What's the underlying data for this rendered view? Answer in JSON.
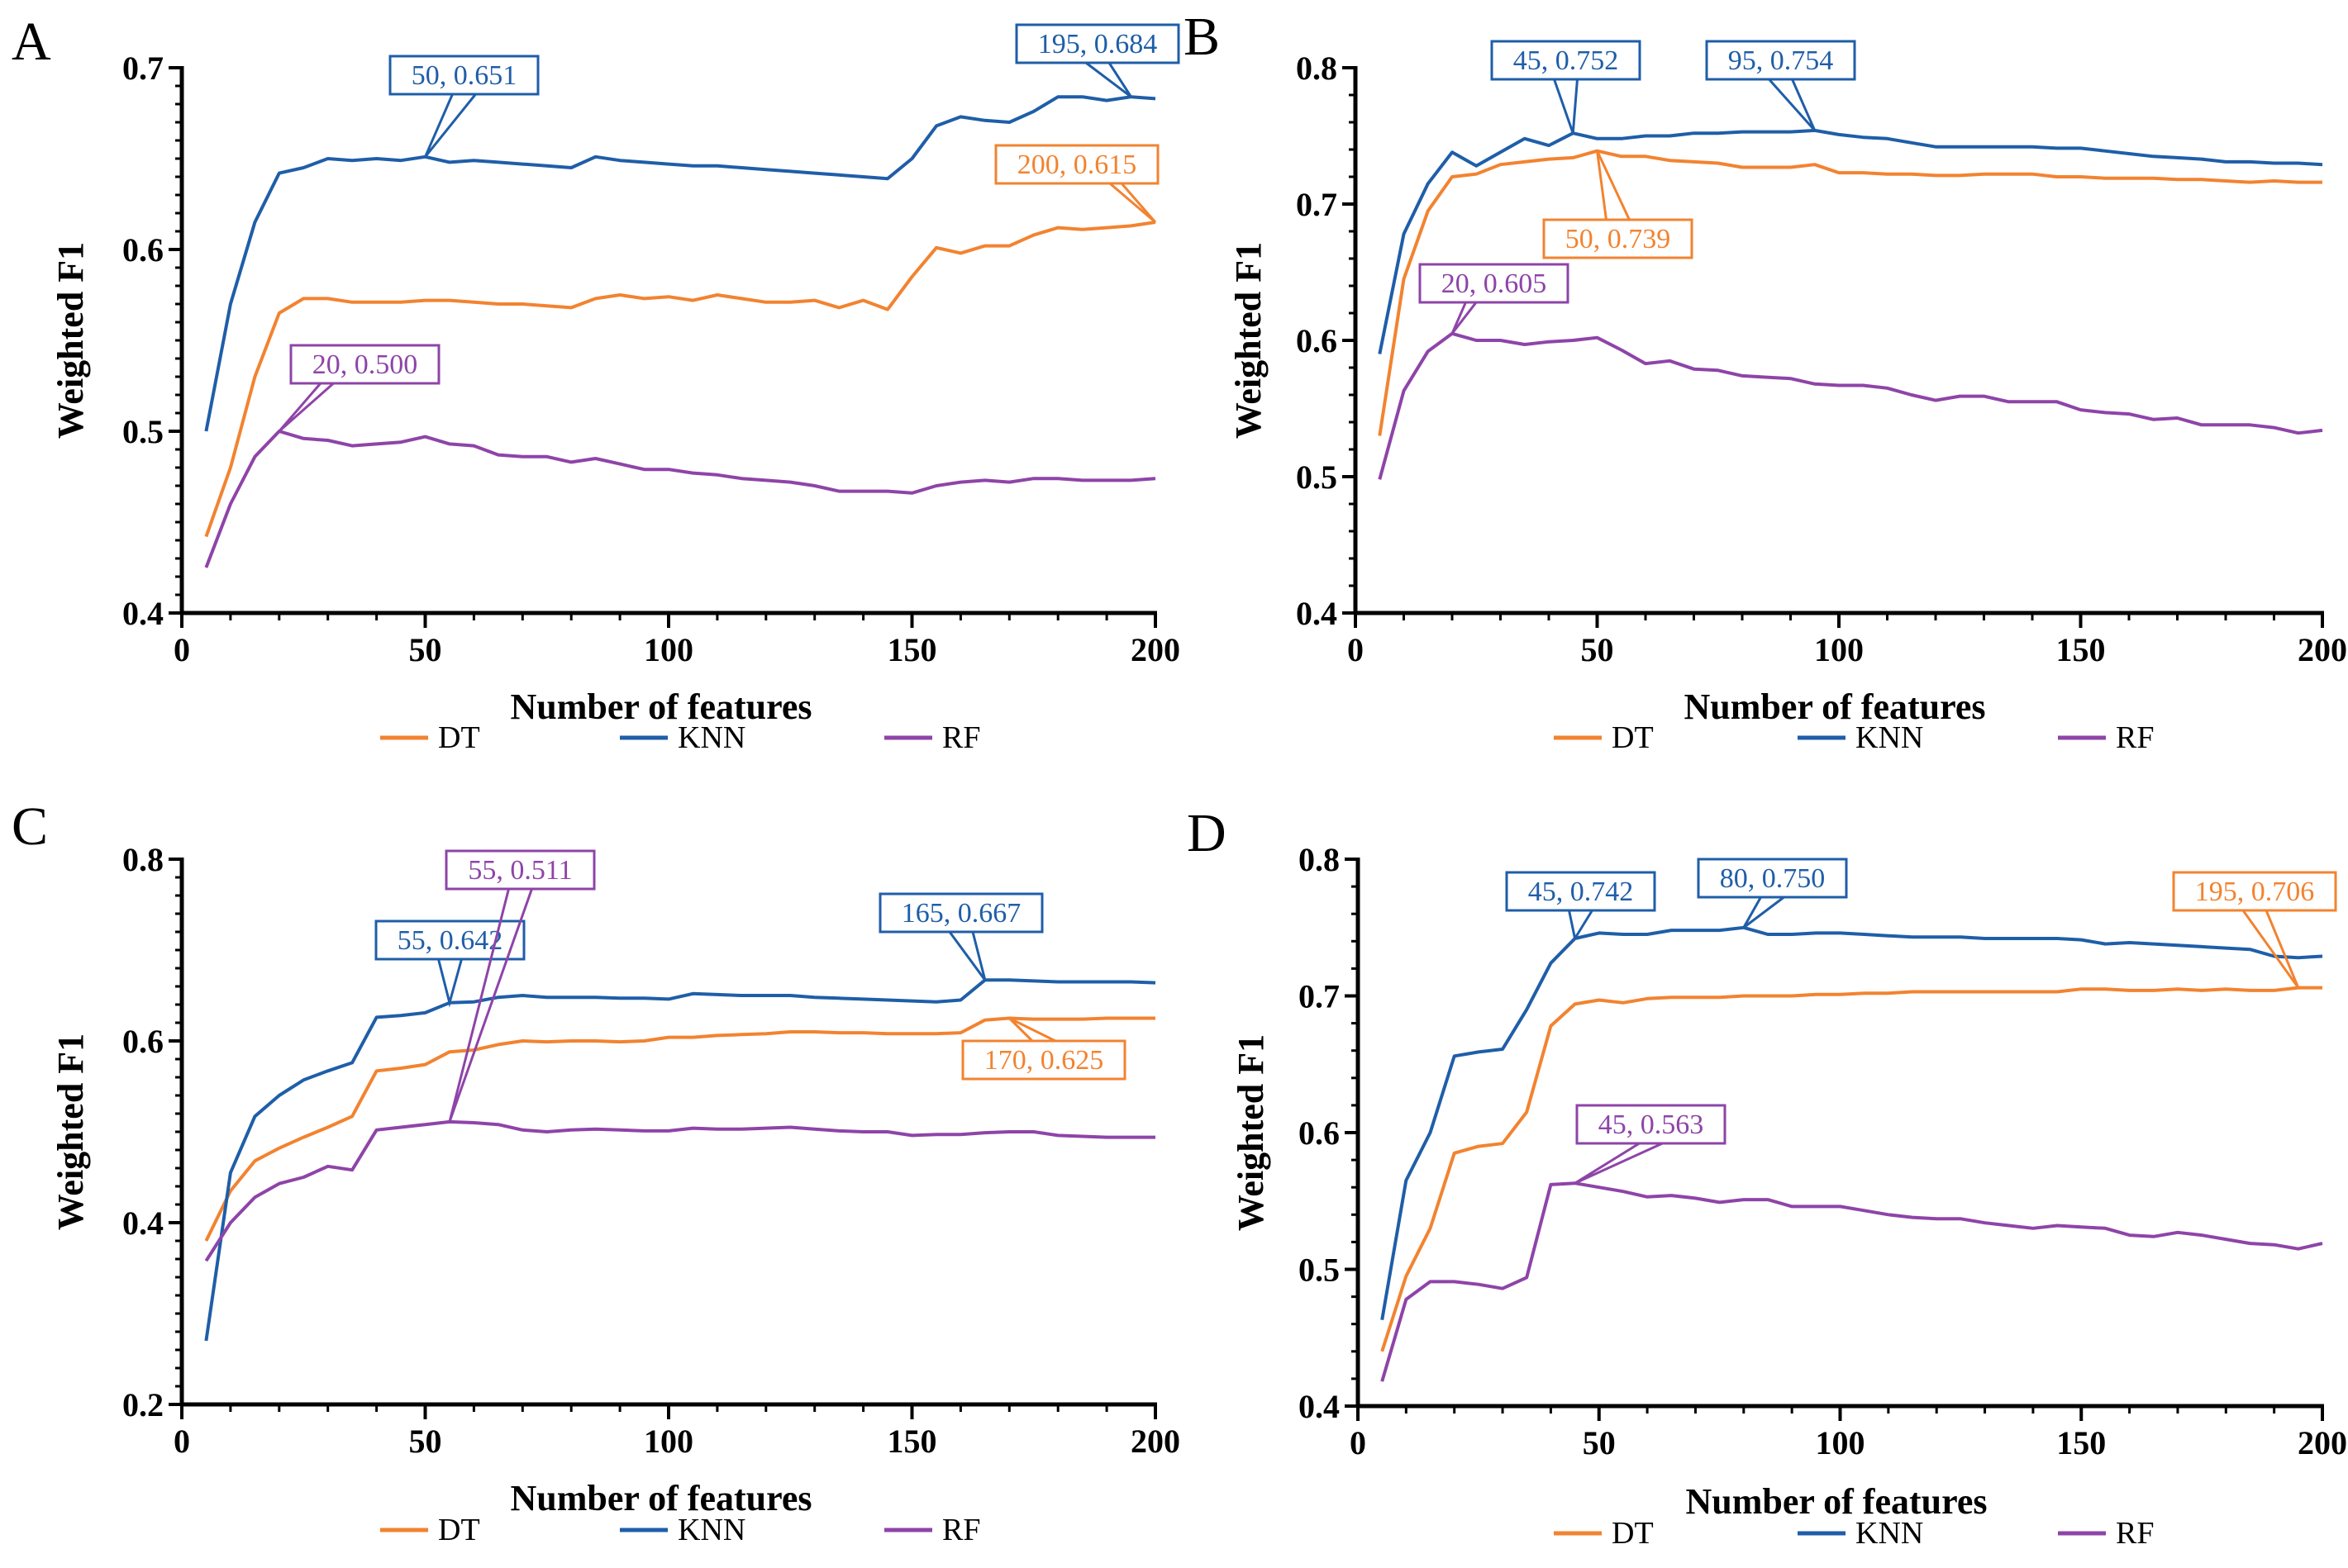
{
  "figure": {
    "colors": {
      "DT": "#f28330",
      "KNN": "#1f5ea8",
      "RF": "#8e44a8"
    }
  },
  "chart_data": [
    {
      "panel": "A",
      "type": "line",
      "xlabel": "Number of features",
      "ylabel": "Weighted F1",
      "xlim": [
        0,
        200
      ],
      "ylim": [
        0.4,
        0.7
      ],
      "xticks": [
        "0",
        "50",
        "100",
        "150",
        "200"
      ],
      "yticks": [
        "0.4",
        "0.5",
        "0.6",
        "0.7"
      ],
      "x": [
        5,
        10,
        15,
        20,
        25,
        30,
        35,
        40,
        45,
        50,
        55,
        60,
        65,
        70,
        75,
        80,
        85,
        90,
        95,
        100,
        105,
        110,
        115,
        120,
        125,
        130,
        135,
        140,
        145,
        150,
        155,
        160,
        165,
        170,
        175,
        180,
        185,
        190,
        195,
        200
      ],
      "series": [
        {
          "name": "DT",
          "values": [
            0.442,
            0.48,
            0.53,
            0.565,
            0.573,
            0.573,
            0.571,
            0.571,
            0.571,
            0.572,
            0.572,
            0.571,
            0.57,
            0.57,
            0.569,
            0.568,
            0.573,
            0.575,
            0.573,
            0.574,
            0.572,
            0.575,
            0.573,
            0.571,
            0.571,
            0.572,
            0.568,
            0.572,
            0.567,
            0.585,
            0.601,
            0.598,
            0.602,
            0.602,
            0.608,
            0.612,
            0.611,
            0.612,
            0.613,
            0.615
          ]
        },
        {
          "name": "KNN",
          "values": [
            0.5,
            0.57,
            0.615,
            0.642,
            0.645,
            0.65,
            0.649,
            0.65,
            0.649,
            0.651,
            0.648,
            0.649,
            0.648,
            0.647,
            0.646,
            0.645,
            0.651,
            0.649,
            0.648,
            0.647,
            0.646,
            0.646,
            0.645,
            0.644,
            0.643,
            0.642,
            0.641,
            0.64,
            0.639,
            0.65,
            0.668,
            0.673,
            0.671,
            0.67,
            0.676,
            0.684,
            0.684,
            0.682,
            0.684,
            0.683
          ]
        },
        {
          "name": "RF",
          "values": [
            0.425,
            0.46,
            0.486,
            0.5,
            0.496,
            0.495,
            0.492,
            0.493,
            0.494,
            0.497,
            0.493,
            0.492,
            0.487,
            0.486,
            0.486,
            0.483,
            0.485,
            0.482,
            0.479,
            0.479,
            0.477,
            0.476,
            0.474,
            0.473,
            0.472,
            0.47,
            0.467,
            0.467,
            0.467,
            0.466,
            0.47,
            0.472,
            0.473,
            0.472,
            0.474,
            0.474,
            0.473,
            0.473,
            0.473,
            0.474
          ]
        }
      ],
      "annotations": [
        {
          "series": "KNN",
          "x": 50,
          "y": 0.651,
          "label": "50, 0.651"
        },
        {
          "series": "KNN",
          "x": 195,
          "y": 0.684,
          "label": "195, 0.684"
        },
        {
          "series": "DT",
          "x": 200,
          "y": 0.615,
          "label": "200, 0.615"
        },
        {
          "series": "RF",
          "x": 20,
          "y": 0.5,
          "label": "20, 0.500"
        }
      ],
      "legend": [
        "DT",
        "KNN",
        "RF"
      ]
    },
    {
      "panel": "B",
      "type": "line",
      "xlabel": "Number of features",
      "ylabel": "Weighted F1",
      "xlim": [
        0,
        200
      ],
      "ylim": [
        0.4,
        0.8
      ],
      "xticks": [
        "0",
        "50",
        "100",
        "150",
        "200"
      ],
      "yticks": [
        "0.4",
        "0.5",
        "0.6",
        "0.7",
        "0.8"
      ],
      "x": [
        5,
        10,
        15,
        20,
        25,
        30,
        35,
        40,
        45,
        50,
        55,
        60,
        65,
        70,
        75,
        80,
        85,
        90,
        95,
        100,
        105,
        110,
        115,
        120,
        125,
        130,
        135,
        140,
        145,
        150,
        155,
        160,
        165,
        170,
        175,
        180,
        185,
        190,
        195,
        200
      ],
      "series": [
        {
          "name": "DT",
          "values": [
            0.53,
            0.645,
            0.695,
            0.72,
            0.722,
            0.729,
            0.731,
            0.733,
            0.734,
            0.739,
            0.735,
            0.735,
            0.732,
            0.731,
            0.73,
            0.727,
            0.727,
            0.727,
            0.729,
            0.723,
            0.723,
            0.722,
            0.722,
            0.721,
            0.721,
            0.722,
            0.722,
            0.722,
            0.72,
            0.72,
            0.719,
            0.719,
            0.719,
            0.718,
            0.718,
            0.717,
            0.716,
            0.717,
            0.716,
            0.716
          ]
        },
        {
          "name": "KNN",
          "values": [
            0.59,
            0.678,
            0.715,
            0.738,
            0.728,
            0.738,
            0.748,
            0.743,
            0.752,
            0.748,
            0.748,
            0.75,
            0.75,
            0.752,
            0.752,
            0.753,
            0.753,
            0.753,
            0.754,
            0.751,
            0.749,
            0.748,
            0.745,
            0.742,
            0.742,
            0.742,
            0.742,
            0.742,
            0.741,
            0.741,
            0.739,
            0.737,
            0.735,
            0.734,
            0.733,
            0.731,
            0.731,
            0.73,
            0.73,
            0.729
          ]
        },
        {
          "name": "RF",
          "values": [
            0.498,
            0.563,
            0.592,
            0.605,
            0.6,
            0.6,
            0.597,
            0.599,
            0.6,
            0.602,
            0.593,
            0.583,
            0.585,
            0.579,
            0.578,
            0.574,
            0.573,
            0.572,
            0.568,
            0.567,
            0.567,
            0.565,
            0.56,
            0.556,
            0.559,
            0.559,
            0.555,
            0.555,
            0.555,
            0.549,
            0.547,
            0.546,
            0.542,
            0.543,
            0.538,
            0.538,
            0.538,
            0.536,
            0.532,
            0.534
          ]
        }
      ],
      "annotations": [
        {
          "series": "KNN",
          "x": 45,
          "y": 0.752,
          "label": "45, 0.752"
        },
        {
          "series": "KNN",
          "x": 95,
          "y": 0.754,
          "label": "95, 0.754"
        },
        {
          "series": "DT",
          "x": 50,
          "y": 0.739,
          "label": "50, 0.739"
        },
        {
          "series": "RF",
          "x": 20,
          "y": 0.605,
          "label": "20, 0.605"
        }
      ],
      "legend": [
        "DT",
        "KNN",
        "RF"
      ]
    },
    {
      "panel": "C",
      "type": "line",
      "xlabel": "Number of features",
      "ylabel": "Weighted F1",
      "xlim": [
        0,
        200
      ],
      "ylim": [
        0.2,
        0.8
      ],
      "xticks": [
        "0",
        "50",
        "100",
        "150",
        "200"
      ],
      "yticks": [
        "0.2",
        "0.4",
        "0.6",
        "0.8"
      ],
      "x": [
        5,
        10,
        15,
        20,
        25,
        30,
        35,
        40,
        45,
        50,
        55,
        60,
        65,
        70,
        75,
        80,
        85,
        90,
        95,
        100,
        105,
        110,
        115,
        120,
        125,
        130,
        135,
        140,
        145,
        150,
        155,
        160,
        165,
        170,
        175,
        180,
        185,
        190,
        195,
        200
      ],
      "series": [
        {
          "name": "DT",
          "values": [
            0.38,
            0.435,
            0.468,
            0.482,
            0.494,
            0.505,
            0.517,
            0.567,
            0.57,
            0.574,
            0.588,
            0.59,
            0.596,
            0.6,
            0.599,
            0.6,
            0.6,
            0.599,
            0.6,
            0.604,
            0.604,
            0.606,
            0.607,
            0.608,
            0.61,
            0.61,
            0.609,
            0.609,
            0.608,
            0.608,
            0.608,
            0.609,
            0.623,
            0.625,
            0.624,
            0.624,
            0.624,
            0.625,
            0.625,
            0.625
          ]
        },
        {
          "name": "KNN",
          "values": [
            0.27,
            0.455,
            0.517,
            0.54,
            0.557,
            0.567,
            0.576,
            0.626,
            0.628,
            0.631,
            0.642,
            0.643,
            0.648,
            0.65,
            0.648,
            0.648,
            0.648,
            0.647,
            0.647,
            0.646,
            0.652,
            0.651,
            0.65,
            0.65,
            0.65,
            0.648,
            0.647,
            0.646,
            0.645,
            0.644,
            0.643,
            0.645,
            0.667,
            0.667,
            0.666,
            0.665,
            0.665,
            0.665,
            0.665,
            0.664
          ]
        },
        {
          "name": "RF",
          "values": [
            0.358,
            0.4,
            0.428,
            0.443,
            0.45,
            0.462,
            0.458,
            0.502,
            0.505,
            0.508,
            0.511,
            0.51,
            0.508,
            0.502,
            0.5,
            0.502,
            0.503,
            0.502,
            0.501,
            0.501,
            0.504,
            0.503,
            0.503,
            0.504,
            0.505,
            0.503,
            0.501,
            0.5,
            0.5,
            0.496,
            0.497,
            0.497,
            0.499,
            0.5,
            0.5,
            0.496,
            0.495,
            0.494,
            0.494,
            0.494
          ]
        }
      ],
      "annotations": [
        {
          "series": "KNN",
          "x": 55,
          "y": 0.642,
          "label": "55, 0.642"
        },
        {
          "series": "KNN",
          "x": 165,
          "y": 0.667,
          "label": "165, 0.667"
        },
        {
          "series": "DT",
          "x": 170,
          "y": 0.625,
          "label": "170, 0.625"
        },
        {
          "series": "RF",
          "x": 55,
          "y": 0.511,
          "label": "55, 0.511"
        }
      ],
      "legend": [
        "DT",
        "KNN",
        "RF"
      ]
    },
    {
      "panel": "D",
      "type": "line",
      "xlabel": "Number of features",
      "ylabel": "Weighted F1",
      "xlim": [
        0,
        200
      ],
      "ylim": [
        0.4,
        0.8
      ],
      "xticks": [
        "0",
        "50",
        "100",
        "150",
        "200"
      ],
      "yticks": [
        "0.4",
        "0.5",
        "0.6",
        "0.7",
        "0.8"
      ],
      "x": [
        5,
        10,
        15,
        20,
        25,
        30,
        35,
        40,
        45,
        50,
        55,
        60,
        65,
        70,
        75,
        80,
        85,
        90,
        95,
        100,
        105,
        110,
        115,
        120,
        125,
        130,
        135,
        140,
        145,
        150,
        155,
        160,
        165,
        170,
        175,
        180,
        185,
        190,
        195,
        200
      ],
      "series": [
        {
          "name": "DT",
          "values": [
            0.44,
            0.495,
            0.53,
            0.585,
            0.59,
            0.592,
            0.615,
            0.678,
            0.694,
            0.697,
            0.695,
            0.698,
            0.699,
            0.699,
            0.699,
            0.7,
            0.7,
            0.7,
            0.701,
            0.701,
            0.702,
            0.702,
            0.703,
            0.703,
            0.703,
            0.703,
            0.703,
            0.703,
            0.703,
            0.705,
            0.705,
            0.704,
            0.704,
            0.705,
            0.704,
            0.705,
            0.704,
            0.704,
            0.706,
            0.706
          ]
        },
        {
          "name": "KNN",
          "values": [
            0.463,
            0.565,
            0.6,
            0.656,
            0.659,
            0.661,
            0.69,
            0.724,
            0.742,
            0.746,
            0.745,
            0.745,
            0.748,
            0.748,
            0.748,
            0.75,
            0.745,
            0.745,
            0.746,
            0.746,
            0.745,
            0.744,
            0.743,
            0.743,
            0.743,
            0.742,
            0.742,
            0.742,
            0.742,
            0.741,
            0.738,
            0.739,
            0.738,
            0.737,
            0.736,
            0.735,
            0.734,
            0.729,
            0.728,
            0.729
          ]
        },
        {
          "name": "RF",
          "values": [
            0.418,
            0.478,
            0.491,
            0.491,
            0.489,
            0.486,
            0.494,
            0.562,
            0.563,
            0.56,
            0.557,
            0.553,
            0.554,
            0.552,
            0.549,
            0.551,
            0.551,
            0.546,
            0.546,
            0.546,
            0.543,
            0.54,
            0.538,
            0.537,
            0.537,
            0.534,
            0.532,
            0.53,
            0.532,
            0.531,
            0.53,
            0.525,
            0.524,
            0.527,
            0.525,
            0.522,
            0.519,
            0.518,
            0.515,
            0.519
          ]
        }
      ],
      "annotations": [
        {
          "series": "KNN",
          "x": 45,
          "y": 0.742,
          "label": "45, 0.742"
        },
        {
          "series": "KNN",
          "x": 80,
          "y": 0.75,
          "label": "80, 0.750"
        },
        {
          "series": "DT",
          "x": 195,
          "y": 0.706,
          "label": "195, 0.706"
        },
        {
          "series": "RF",
          "x": 45,
          "y": 0.563,
          "label": "45, 0.563"
        }
      ],
      "legend": [
        "DT",
        "KNN",
        "RF"
      ]
    }
  ]
}
